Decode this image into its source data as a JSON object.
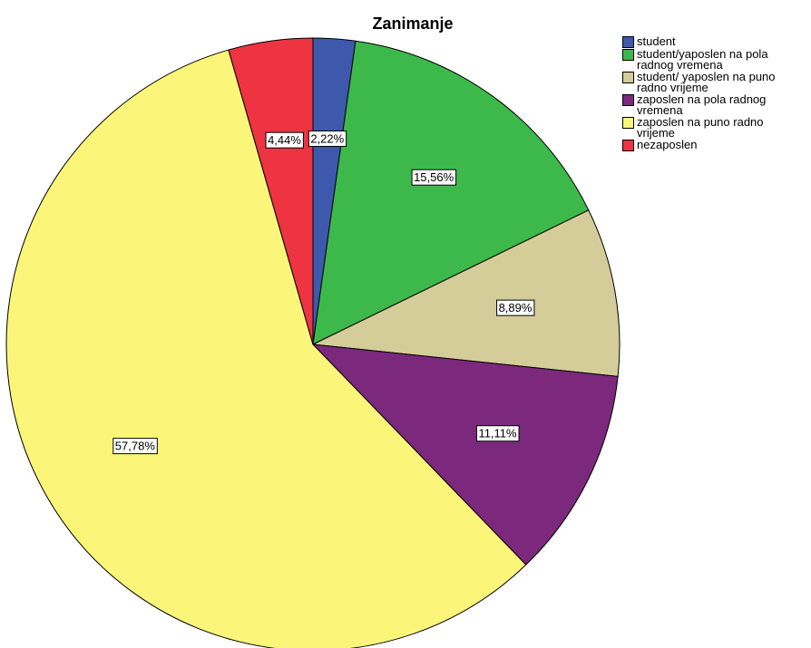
{
  "chart_data": {
    "type": "pie",
    "title": "Zanimanje",
    "categories": [
      "student",
      "student/yaposlen na pola radnog vremena",
      "student/ yaposlen na puno radno vrijeme",
      "zaposlen na pola radnog vremena",
      "zaposlen na puno radno vrijeme",
      "nezaposlen"
    ],
    "values": [
      2.22,
      15.56,
      8.89,
      11.11,
      57.78,
      4.44
    ],
    "value_labels": [
      "2,22%",
      "15,56%",
      "8,89%",
      "11,11%",
      "57,78%",
      "4,44%"
    ],
    "colors": [
      "#3e58ac",
      "#3cb94a",
      "#d5cd99",
      "#7b287d",
      "#fbf67a",
      "#ee3342"
    ],
    "legend": "upper right"
  }
}
